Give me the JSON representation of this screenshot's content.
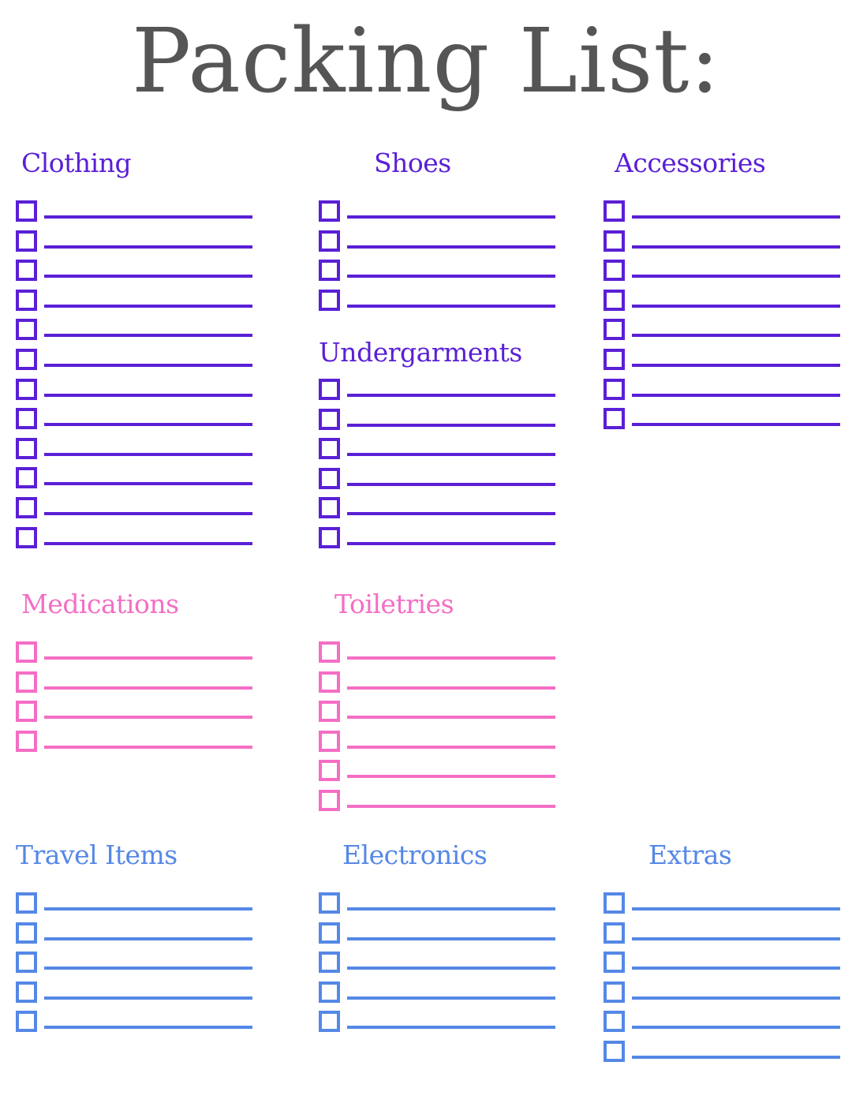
{
  "title": "Packing List:",
  "colors": {
    "purple": "#5a1fd6",
    "pink": "#f46ec4",
    "blue": "#5588e6",
    "title": "#555555"
  },
  "sections": [
    {
      "id": "clothing",
      "label": "Clothing",
      "rows": 12,
      "color": "purple"
    },
    {
      "id": "shoes",
      "label": "Shoes",
      "rows": 4,
      "color": "purple"
    },
    {
      "id": "accessories",
      "label": "Accessories",
      "rows": 8,
      "color": "purple"
    },
    {
      "id": "undergarments",
      "label": "Undergarments",
      "rows": 6,
      "color": "purple"
    },
    {
      "id": "medications",
      "label": "Medications",
      "rows": 4,
      "color": "pink"
    },
    {
      "id": "toiletries",
      "label": "Toiletries",
      "rows": 6,
      "color": "pink"
    },
    {
      "id": "travel-items",
      "label": "Travel Items",
      "rows": 5,
      "color": "blue"
    },
    {
      "id": "electronics",
      "label": "Electronics",
      "rows": 5,
      "color": "blue"
    },
    {
      "id": "extras",
      "label": "Extras",
      "rows": 6,
      "color": "blue"
    }
  ]
}
